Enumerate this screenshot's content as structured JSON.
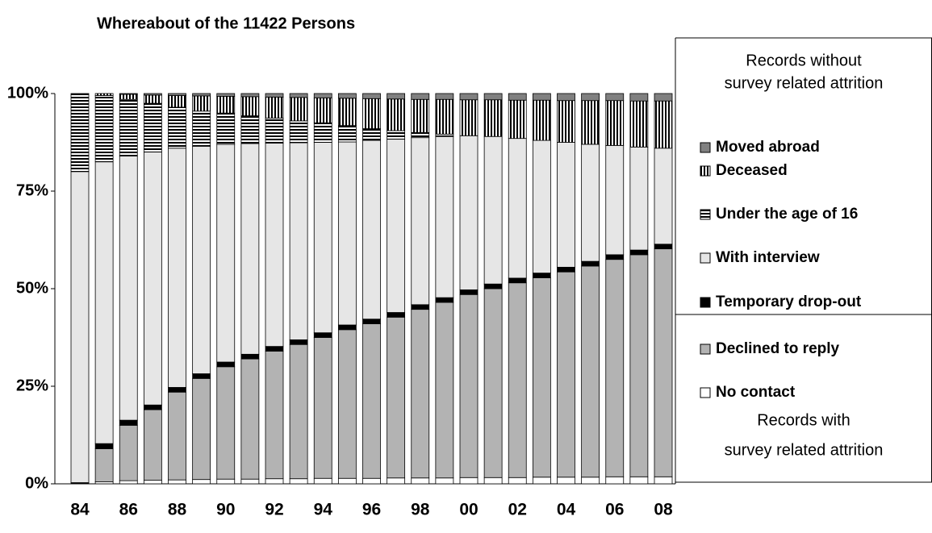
{
  "chart_data": {
    "type": "stacked_bar",
    "title": "Whereabout of the 11422 Persons",
    "categories": [
      "84",
      null,
      "86",
      null,
      "88",
      null,
      "90",
      null,
      "92",
      null,
      "94",
      null,
      "96",
      null,
      "98",
      null,
      "00",
      null,
      "02",
      null,
      "04",
      null,
      "06",
      null,
      "08"
    ],
    "series": [
      {
        "name": "No contact",
        "color": "#ffffff",
        "values": [
          0,
          0.5,
          0.8,
          0.9,
          1,
          1.1,
          1.2,
          1.2,
          1.3,
          1.3,
          1.4,
          1.4,
          1.4,
          1.5,
          1.5,
          1.5,
          1.6,
          1.6,
          1.6,
          1.7,
          1.7,
          1.7,
          1.8,
          1.8,
          1.8
        ]
      },
      {
        "name": "Declined to reply",
        "color": "#b3b3b3",
        "values": [
          0,
          8.5,
          14.2,
          18.1,
          22.5,
          25.9,
          28.8,
          30.8,
          32.7,
          34.4,
          36.1,
          38.1,
          39.6,
          41.2,
          43.2,
          45,
          46.9,
          48.4,
          49.9,
          51.1,
          52.6,
          54.1,
          55.7,
          56.9,
          58.4
        ]
      },
      {
        "name": "Temporary drop-out",
        "color": "#000000",
        "values": [
          0.3,
          1.3,
          1.3,
          1.2,
          1.2,
          1.2,
          1.2,
          1.2,
          1.2,
          1.2,
          1.2,
          1.2,
          1.2,
          1.2,
          1.2,
          1.2,
          1.2,
          1.2,
          1.2,
          1.2,
          1.2,
          1.2,
          1.2,
          1.2,
          1.2
        ]
      },
      {
        "name": "With interview",
        "color": "#e6e6e6",
        "values": [
          79.7,
          72.2,
          67.7,
          64.8,
          61.3,
          58.3,
          55.8,
          54,
          52.1,
          50.5,
          48.8,
          46.9,
          45.8,
          44.4,
          42.8,
          41.3,
          39.5,
          37.8,
          35.8,
          34,
          32,
          30,
          28,
          26.4,
          24.6
        ]
      },
      {
        "name": "Under the age of 16",
        "color": "#000000",
        "pattern": "horizontal",
        "values": [
          20,
          17,
          14.5,
          12.5,
          10.5,
          9,
          8,
          7.1,
          6.4,
          5.6,
          5,
          4.2,
          3,
          2.2,
          1.3,
          0.6,
          0,
          0,
          0,
          0,
          0,
          0,
          0,
          0,
          0
        ]
      },
      {
        "name": "Deceased",
        "color": "#000000",
        "pattern": "vertical",
        "values": [
          0,
          0.5,
          1.3,
          2.1,
          3,
          3.9,
          4.3,
          4.9,
          5.4,
          6,
          6.4,
          7,
          7.7,
          8.1,
          8.5,
          8.9,
          9.2,
          9.4,
          9.8,
          10.3,
          10.7,
          11.2,
          11.5,
          11.8,
          12.1
        ]
      },
      {
        "name": "Moved abroad",
        "color": "#808080",
        "values": [
          0,
          0,
          0.2,
          0.4,
          0.5,
          0.6,
          0.7,
          0.8,
          0.9,
          1,
          1.1,
          1.2,
          1.3,
          1.4,
          1.5,
          1.5,
          1.6,
          1.6,
          1.7,
          1.7,
          1.8,
          1.8,
          1.8,
          1.9,
          1.9
        ]
      }
    ],
    "ylim": [
      0,
      100
    ],
    "yticks": [
      {
        "value": 0,
        "label": "0%"
      },
      {
        "value": 25,
        "label": "25%"
      },
      {
        "value": 50,
        "label": "50%"
      },
      {
        "value": 75,
        "label": "75%"
      },
      {
        "value": 100,
        "label": "100%"
      }
    ],
    "annotations": [
      [
        "Records without",
        "survey related attrition"
      ],
      [
        "Records with",
        "survey related attrition"
      ]
    ]
  }
}
